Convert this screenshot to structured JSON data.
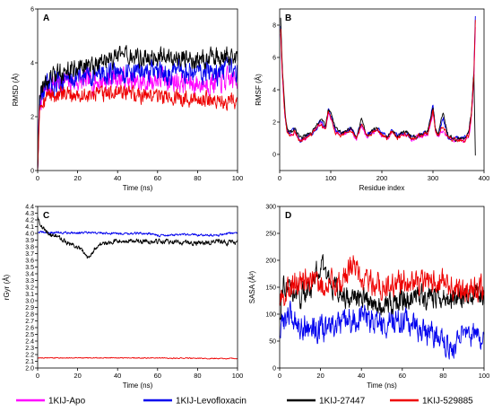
{
  "chart_data": [
    {
      "type": "line",
      "panel_label": "A",
      "xlabel": "Time (ns)",
      "ylabel": "RMSD (Å)",
      "xlim": [
        0,
        100
      ],
      "ylim": [
        0,
        6
      ],
      "xticks": [
        0,
        20,
        40,
        60,
        80,
        100
      ],
      "yticks": [
        0,
        2,
        4,
        6
      ],
      "series": [
        {
          "name": "1KIJ-Apo",
          "color": "#ff00ff",
          "x": [
            0,
            1,
            5,
            10,
            20,
            30,
            40,
            50,
            60,
            70,
            80,
            90,
            100
          ],
          "y": [
            0,
            2.6,
            3.1,
            3.3,
            3.3,
            3.3,
            3.5,
            3.2,
            3.4,
            3.3,
            3.2,
            3.3,
            3.4
          ],
          "noise": 0.35
        },
        {
          "name": "1KIJ-Levofloxacin",
          "color": "#0000ee",
          "x": [
            0,
            1,
            5,
            10,
            20,
            30,
            40,
            50,
            60,
            70,
            80,
            90,
            100
          ],
          "y": [
            0,
            2.7,
            3.1,
            3.3,
            3.5,
            3.6,
            3.6,
            3.7,
            3.6,
            3.6,
            3.7,
            3.6,
            3.7
          ],
          "noise": 0.35
        },
        {
          "name": "1KIJ-27447",
          "color": "#000000",
          "x": [
            0,
            1,
            5,
            10,
            20,
            30,
            40,
            50,
            60,
            70,
            80,
            90,
            100
          ],
          "y": [
            0,
            3.0,
            3.3,
            3.6,
            3.8,
            4.0,
            4.2,
            4.2,
            4.2,
            4.2,
            4.1,
            4.2,
            4.2
          ],
          "noise": 0.3
        },
        {
          "name": "1KIJ-529885",
          "color": "#ee0000",
          "x": [
            0,
            1,
            5,
            10,
            20,
            30,
            40,
            50,
            60,
            70,
            80,
            90,
            100
          ],
          "y": [
            0,
            2.5,
            2.8,
            2.8,
            2.8,
            2.8,
            2.9,
            2.8,
            2.8,
            2.7,
            2.7,
            2.6,
            2.6
          ],
          "noise": 0.25
        }
      ]
    },
    {
      "type": "line",
      "panel_label": "B",
      "xlabel": "Residue index",
      "ylabel": "RMSF (Å)",
      "xlim": [
        0,
        400
      ],
      "ylim": [
        -1,
        9
      ],
      "xticks": [
        0,
        100,
        200,
        300,
        400
      ],
      "yticks": [
        0,
        2,
        4,
        6,
        8
      ],
      "series": [
        {
          "name": "1KIJ-Apo",
          "color": "#ff00ff",
          "x": [
            2,
            5,
            10,
            15,
            20,
            30,
            40,
            50,
            60,
            70,
            80,
            90,
            95,
            100,
            110,
            120,
            130,
            140,
            150,
            160,
            170,
            180,
            190,
            200,
            210,
            220,
            230,
            240,
            250,
            260,
            270,
            280,
            290,
            300,
            305,
            310,
            320,
            330,
            340,
            350,
            360,
            370,
            375,
            380,
            383
          ],
          "y": [
            7.5,
            5.0,
            2.4,
            1.3,
            1.2,
            1.4,
            0.8,
            1.0,
            1.2,
            1.5,
            2.0,
            1.5,
            2.6,
            2.2,
            1.4,
            1.2,
            1.3,
            1.5,
            0.9,
            1.8,
            1.1,
            1.3,
            1.5,
            1.2,
            1.0,
            1.4,
            1.0,
            1.2,
            1.2,
            0.9,
            1.1,
            1.2,
            1.3,
            2.5,
            1.4,
            1.1,
            1.5,
            1.0,
            0.9,
            0.9,
            0.8,
            1.2,
            2.2,
            4.5,
            7.8
          ]
        },
        {
          "name": "1KIJ-Levofloxacin",
          "color": "#0000ee",
          "x": [
            2,
            5,
            10,
            15,
            20,
            30,
            40,
            50,
            60,
            70,
            80,
            90,
            95,
            100,
            110,
            120,
            130,
            140,
            150,
            160,
            170,
            180,
            190,
            200,
            210,
            220,
            230,
            240,
            250,
            260,
            270,
            280,
            290,
            300,
            305,
            310,
            320,
            330,
            340,
            350,
            360,
            370,
            375,
            380,
            383
          ],
          "y": [
            8.0,
            5.2,
            2.6,
            1.4,
            1.3,
            1.5,
            0.9,
            1.1,
            1.3,
            1.4,
            2.1,
            1.6,
            2.8,
            2.4,
            1.5,
            1.3,
            1.4,
            1.6,
            1.0,
            2.0,
            1.2,
            1.4,
            1.6,
            1.3,
            1.1,
            1.5,
            1.1,
            1.3,
            1.3,
            1.0,
            1.2,
            1.3,
            1.4,
            3.2,
            1.5,
            1.2,
            2.2,
            1.1,
            1.0,
            1.0,
            0.9,
            1.3,
            2.4,
            5.0,
            8.6
          ]
        },
        {
          "name": "1KIJ-27447",
          "color": "#000000",
          "x": [
            2,
            5,
            10,
            15,
            20,
            30,
            40,
            50,
            60,
            70,
            80,
            90,
            95,
            100,
            110,
            120,
            130,
            140,
            150,
            160,
            170,
            180,
            190,
            200,
            210,
            220,
            230,
            240,
            250,
            260,
            270,
            280,
            290,
            300,
            305,
            310,
            320,
            330,
            340,
            350,
            360,
            370,
            375,
            380,
            383
          ],
          "y": [
            8.5,
            5.5,
            2.8,
            1.4,
            1.3,
            1.5,
            1.0,
            1.2,
            1.3,
            1.6,
            2.2,
            1.7,
            2.9,
            2.5,
            1.6,
            1.3,
            1.4,
            1.6,
            1.0,
            2.1,
            1.2,
            1.4,
            1.6,
            1.3,
            1.1,
            1.5,
            1.1,
            1.3,
            1.4,
            1.0,
            1.2,
            1.3,
            1.4,
            3.0,
            1.5,
            1.2,
            2.5,
            1.2,
            1.0,
            1.0,
            0.9,
            1.3,
            2.5,
            5.2,
            0.0
          ]
        },
        {
          "name": "1KIJ-529885",
          "color": "#ee0000",
          "x": [
            2,
            5,
            10,
            15,
            20,
            30,
            40,
            50,
            60,
            70,
            80,
            90,
            95,
            100,
            110,
            120,
            130,
            140,
            150,
            160,
            170,
            180,
            190,
            200,
            210,
            220,
            230,
            240,
            250,
            260,
            270,
            280,
            290,
            300,
            305,
            310,
            320,
            330,
            340,
            350,
            360,
            370,
            375,
            380,
            383
          ],
          "y": [
            7.8,
            5.1,
            2.5,
            1.3,
            1.2,
            1.4,
            0.8,
            1.0,
            1.2,
            1.5,
            2.0,
            1.5,
            2.7,
            2.3,
            1.4,
            1.2,
            1.3,
            1.5,
            0.9,
            1.9,
            1.1,
            1.3,
            1.5,
            1.2,
            1.0,
            1.4,
            1.0,
            1.2,
            1.2,
            0.9,
            1.1,
            1.2,
            1.3,
            2.8,
            1.4,
            1.1,
            1.8,
            1.0,
            0.9,
            0.9,
            0.8,
            1.2,
            2.3,
            4.8,
            8.2
          ]
        }
      ]
    },
    {
      "type": "line",
      "panel_label": "C",
      "xlabel": "Time (ns)",
      "ylabel": "rGyr (Å)",
      "xlim": [
        0,
        100
      ],
      "ylim": [
        2.0,
        4.4
      ],
      "xticks": [
        0,
        20,
        40,
        60,
        80,
        100
      ],
      "yticks": [
        2.0,
        2.1,
        2.2,
        2.3,
        2.4,
        2.5,
        2.6,
        2.7,
        2.8,
        2.9,
        3.0,
        3.1,
        3.2,
        3.3,
        3.4,
        3.5,
        3.6,
        3.7,
        3.8,
        3.9,
        4.0,
        4.1,
        4.2,
        4.3,
        4.4
      ],
      "series": [
        {
          "name": "1KIJ-Levofloxacin",
          "color": "#0000ee",
          "x": [
            0,
            5,
            20,
            40,
            55,
            60,
            80,
            90,
            95,
            100
          ],
          "y": [
            4.02,
            4.01,
            4.01,
            4.0,
            4.0,
            3.97,
            3.98,
            3.97,
            4.0,
            4.0
          ],
          "noise": 0.015
        },
        {
          "name": "1KIJ-27447",
          "color": "#000000",
          "x": [
            0,
            2,
            5,
            10,
            15,
            20,
            25,
            30,
            40,
            50,
            60,
            70,
            80,
            90,
            95,
            100
          ],
          "y": [
            4.25,
            4.1,
            4.0,
            3.95,
            3.85,
            3.8,
            3.65,
            3.82,
            3.9,
            3.88,
            3.88,
            3.87,
            3.85,
            3.88,
            3.86,
            3.88
          ],
          "noise": 0.03
        },
        {
          "name": "1KIJ-529885",
          "color": "#ee0000",
          "x": [
            0,
            50,
            100
          ],
          "y": [
            2.15,
            2.15,
            2.14
          ],
          "noise": 0.006
        }
      ]
    },
    {
      "type": "line",
      "panel_label": "D",
      "xlabel": "Time (ns)",
      "ylabel": "SASA (Å²)",
      "xlim": [
        0,
        100
      ],
      "ylim": [
        0,
        300
      ],
      "xticks": [
        0,
        20,
        40,
        60,
        80,
        100
      ],
      "yticks": [
        0,
        50,
        100,
        150,
        200,
        250,
        300
      ],
      "series": [
        {
          "name": "1KIJ-Levofloxacin",
          "color": "#0000ee",
          "x": [
            0,
            2,
            5,
            10,
            20,
            30,
            40,
            50,
            60,
            70,
            80,
            85,
            90,
            100
          ],
          "y": [
            60,
            90,
            100,
            80,
            70,
            80,
            95,
            80,
            90,
            70,
            55,
            40,
            60,
            55
          ],
          "noise": 20
        },
        {
          "name": "1KIJ-27447",
          "color": "#000000",
          "x": [
            0,
            2,
            5,
            10,
            15,
            20,
            30,
            40,
            50,
            60,
            70,
            80,
            90,
            100
          ],
          "y": [
            90,
            170,
            140,
            130,
            150,
            190,
            130,
            130,
            120,
            125,
            130,
            130,
            135,
            135
          ],
          "noise": 18
        },
        {
          "name": "1KIJ-529885",
          "color": "#ee0000",
          "x": [
            0,
            5,
            10,
            20,
            30,
            35,
            40,
            50,
            60,
            70,
            80,
            90,
            100
          ],
          "y": [
            120,
            150,
            160,
            155,
            160,
            200,
            165,
            150,
            160,
            155,
            160,
            145,
            150
          ],
          "noise": 20
        }
      ]
    }
  ],
  "legend": [
    {
      "label": "1KIJ-Apo",
      "color": "#ff00ff"
    },
    {
      "label": "1KIJ-Levofloxacin",
      "color": "#0000ee"
    },
    {
      "label": "1KIJ-27447",
      "color": "#000000"
    },
    {
      "label": "1KIJ-529885",
      "color": "#ee0000"
    }
  ]
}
